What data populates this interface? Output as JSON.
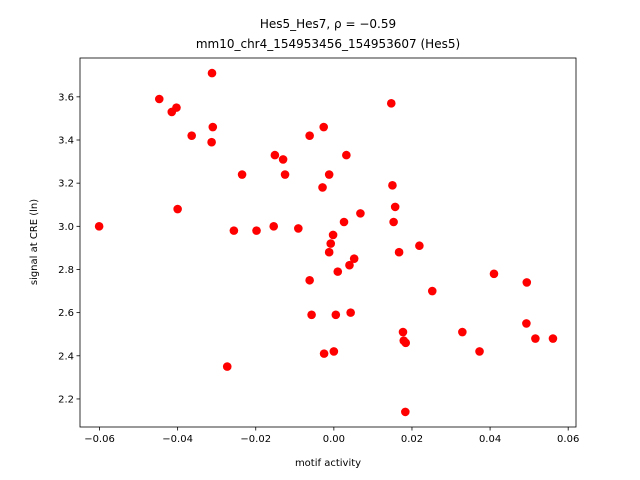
{
  "chart_data": {
    "type": "scatter",
    "title_line1": "Hes5_Hes7, ρ = −0.59",
    "title_line2": "mm10_chr4_154953456_154953607 (Hes5)",
    "xlabel": "motif activity",
    "ylabel": "signal at CRE (ln)",
    "xlim": [
      -0.065,
      0.062
    ],
    "ylim": [
      2.07,
      3.78
    ],
    "xticks": [
      -0.06,
      -0.04,
      -0.02,
      0.0,
      0.02,
      0.04,
      0.06
    ],
    "xtick_labels": [
      "−0.06",
      "−0.04",
      "−0.02",
      "0.00",
      "0.02",
      "0.04",
      "0.06"
    ],
    "yticks": [
      2.2,
      2.4,
      2.6,
      2.8,
      3.0,
      3.2,
      3.4,
      3.6
    ],
    "ytick_labels": [
      "2.2",
      "2.4",
      "2.6",
      "2.8",
      "3.0",
      "3.2",
      "3.4",
      "3.6"
    ],
    "grid": false,
    "marker_color": "#ff0000",
    "points": [
      {
        "x": -0.0601,
        "y": 3.0
      },
      {
        "x": -0.0447,
        "y": 3.59
      },
      {
        "x": -0.0415,
        "y": 3.53
      },
      {
        "x": -0.0403,
        "y": 3.55
      },
      {
        "x": -0.04,
        "y": 3.08
      },
      {
        "x": -0.0364,
        "y": 3.42
      },
      {
        "x": -0.0312,
        "y": 3.71
      },
      {
        "x": -0.031,
        "y": 3.46
      },
      {
        "x": -0.0313,
        "y": 3.39
      },
      {
        "x": -0.0273,
        "y": 2.35
      },
      {
        "x": -0.0256,
        "y": 2.98
      },
      {
        "x": -0.0235,
        "y": 3.24
      },
      {
        "x": -0.0198,
        "y": 2.98
      },
      {
        "x": -0.0154,
        "y": 3.0
      },
      {
        "x": -0.0151,
        "y": 3.33
      },
      {
        "x": -0.013,
        "y": 3.31
      },
      {
        "x": -0.0125,
        "y": 3.24
      },
      {
        "x": -0.0091,
        "y": 2.99
      },
      {
        "x": -0.0062,
        "y": 3.42
      },
      {
        "x": -0.0062,
        "y": 2.75
      },
      {
        "x": -0.0057,
        "y": 2.59
      },
      {
        "x": -0.0029,
        "y": 3.18
      },
      {
        "x": -0.0026,
        "y": 3.46
      },
      {
        "x": -0.0025,
        "y": 2.41
      },
      {
        "x": -0.0012,
        "y": 3.24
      },
      {
        "x": -0.0012,
        "y": 2.88
      },
      {
        "x": -0.0008,
        "y": 2.92
      },
      {
        "x": -0.0002,
        "y": 2.96
      },
      {
        "x": 0.0,
        "y": 2.42
      },
      {
        "x": 0.0005,
        "y": 2.59
      },
      {
        "x": 0.001,
        "y": 2.79
      },
      {
        "x": 0.0026,
        "y": 3.02
      },
      {
        "x": 0.0032,
        "y": 3.33
      },
      {
        "x": 0.004,
        "y": 2.82
      },
      {
        "x": 0.0043,
        "y": 2.6
      },
      {
        "x": 0.0052,
        "y": 2.85
      },
      {
        "x": 0.0068,
        "y": 3.06
      },
      {
        "x": 0.0147,
        "y": 3.57
      },
      {
        "x": 0.015,
        "y": 3.19
      },
      {
        "x": 0.0153,
        "y": 3.02
      },
      {
        "x": 0.0157,
        "y": 3.09
      },
      {
        "x": 0.0167,
        "y": 2.88
      },
      {
        "x": 0.0177,
        "y": 2.51
      },
      {
        "x": 0.0179,
        "y": 2.47
      },
      {
        "x": 0.0184,
        "y": 2.46
      },
      {
        "x": 0.0183,
        "y": 2.14
      },
      {
        "x": 0.0219,
        "y": 2.91
      },
      {
        "x": 0.0252,
        "y": 2.7
      },
      {
        "x": 0.0329,
        "y": 2.51
      },
      {
        "x": 0.0373,
        "y": 2.42
      },
      {
        "x": 0.041,
        "y": 2.78
      },
      {
        "x": 0.0494,
        "y": 2.74
      },
      {
        "x": 0.0493,
        "y": 2.55
      },
      {
        "x": 0.0516,
        "y": 2.48
      },
      {
        "x": 0.0561,
        "y": 2.48
      }
    ]
  }
}
